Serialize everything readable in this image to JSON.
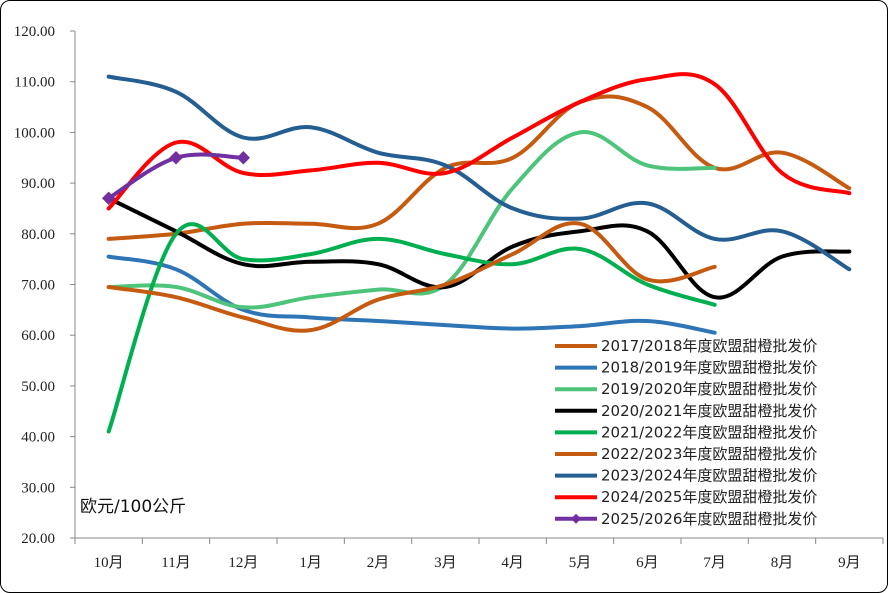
{
  "chart_data": {
    "type": "line",
    "title": "",
    "xlabel": "",
    "ylabel": "欧元/100公斤",
    "categories": [
      "10月",
      "11月",
      "12月",
      "1月",
      "2月",
      "3月",
      "4月",
      "5月",
      "6月",
      "7月",
      "8月",
      "9月"
    ],
    "ylim": [
      20,
      120
    ],
    "yticks": [
      "20.00",
      "30.00",
      "40.00",
      "50.00",
      "60.00",
      "70.00",
      "80.00",
      "90.00",
      "100.00",
      "110.00",
      "120.00"
    ],
    "grid": false,
    "legend_position": "bottom-right",
    "series": [
      {
        "name": "2017/2018年度欧盟甜橙批发价",
        "color": "#C55A11",
        "marker": false,
        "values": [
          79,
          80,
          82,
          82,
          82,
          93,
          95,
          106,
          105,
          93,
          96,
          89
        ]
      },
      {
        "name": "2018/2019年度欧盟甜橙批发价",
        "color": "#2E75B6",
        "marker": false,
        "values": [
          75.5,
          73,
          65,
          63.5,
          62.8,
          62,
          61.3,
          61.8,
          62.8,
          60.5,
          null,
          null
        ]
      },
      {
        "name": "2019/2020年度欧盟甜橙批发价",
        "color": "#4EC47A",
        "marker": false,
        "values": [
          69.5,
          69.5,
          65.5,
          67.5,
          69,
          70,
          89,
          100,
          93.5,
          93,
          null,
          null
        ]
      },
      {
        "name": "2020/2021年度欧盟甜橙批发价",
        "color": "#000000",
        "marker": false,
        "values": [
          87,
          80.5,
          74,
          74.5,
          74,
          69.5,
          77.5,
          80.5,
          80.5,
          67.5,
          75.5,
          76.5
        ]
      },
      {
        "name": "2021/2022年度欧盟甜橙批发价",
        "color": "#00B050",
        "marker": false,
        "values": [
          41,
          80,
          75,
          76,
          79,
          76,
          74,
          77,
          70,
          66,
          null,
          null
        ]
      },
      {
        "name": "2022/2023年度欧盟甜橙批发价",
        "color": "#C55A11",
        "marker": false,
        "values": [
          69.5,
          67.5,
          63.5,
          61,
          67,
          70,
          76,
          82,
          71,
          73.5,
          null,
          null
        ]
      },
      {
        "name": "2023/2024年度欧盟甜橙批发价",
        "color": "#255E91",
        "marker": false,
        "values": [
          111,
          108,
          99,
          101,
          96,
          93.5,
          85,
          83,
          86,
          79,
          80.5,
          73
        ]
      },
      {
        "name": "2024/2025年度欧盟甜橙批发价",
        "color": "#FF0000",
        "marker": false,
        "values": [
          85,
          98,
          92,
          92.5,
          94,
          92,
          99,
          106,
          110.5,
          109.5,
          92,
          88
        ]
      },
      {
        "name": "2025/2026年度欧盟甜橙批发价",
        "color": "#7030A0",
        "marker": true,
        "values": [
          87,
          95,
          95,
          null,
          null,
          null,
          null,
          null,
          null,
          null,
          null,
          null
        ]
      }
    ]
  }
}
